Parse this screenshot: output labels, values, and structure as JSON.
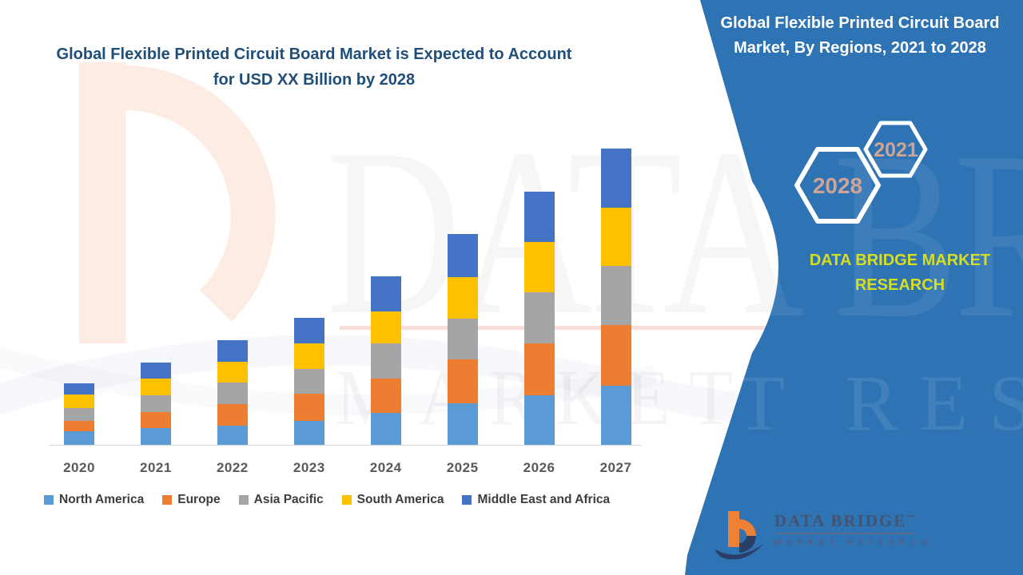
{
  "left_title": {
    "line1": "Global Flexible Printed Circuit Board Market is Expected to Account",
    "line2": "for USD XX Billion by 2028",
    "color": "#1f4e79"
  },
  "panel": {
    "background": "#2e74b5",
    "title_line1": "Global Flexible Printed Circuit Board",
    "title_line2": "Market, By Regions, 2021 to 2028",
    "hexagon_small_label": "2021",
    "hexagon_large_label": "2028",
    "hexagon_label_color": "#d0a394",
    "brand_line1": "DATA BRIDGE MARKET",
    "brand_line2": "RESEARCH",
    "brand_color": "#d6de23"
  },
  "watermark": {
    "big_text": "DATA BRIDGE",
    "sub_text": "MARKET RESEARCH"
  },
  "footer_logo": {
    "name": "DATA BRIDGE",
    "tm": "™",
    "tagline": "MARKET RESEARCH",
    "orange": "#f08134",
    "navy": "#2b3f66"
  },
  "chart_data": {
    "type": "bar",
    "stacked": true,
    "title": "Global Flexible Printed Circuit Board Market is Expected to Account for USD XX Billion by 2028",
    "xlabel": "",
    "ylabel": "",
    "value_note": "no y-axis shown in figure; values are relative units estimated from bar segment heights",
    "grid": false,
    "legend_position": "bottom",
    "categories": [
      "2020",
      "2021",
      "2022",
      "2023",
      "2024",
      "2025",
      "2026",
      "2027"
    ],
    "series": [
      {
        "name": "North America",
        "color": "#5B9BD5",
        "values": [
          17,
          21,
          24,
          30,
          40,
          52,
          62,
          74
        ]
      },
      {
        "name": "Europe",
        "color": "#ED7D31",
        "values": [
          13,
          20,
          27,
          34,
          43,
          55,
          65,
          76
        ]
      },
      {
        "name": "Asia Pacific",
        "color": "#A5A5A5",
        "values": [
          16,
          21,
          27,
          31,
          44,
          51,
          64,
          74
        ]
      },
      {
        "name": "South America",
        "color": "#FFC000",
        "values": [
          17,
          21,
          26,
          32,
          40,
          52,
          63,
          73
        ]
      },
      {
        "name": "Middle East and Africa",
        "color": "#4472C4",
        "values": [
          14,
          20,
          27,
          32,
          44,
          54,
          63,
          74
        ]
      }
    ]
  }
}
